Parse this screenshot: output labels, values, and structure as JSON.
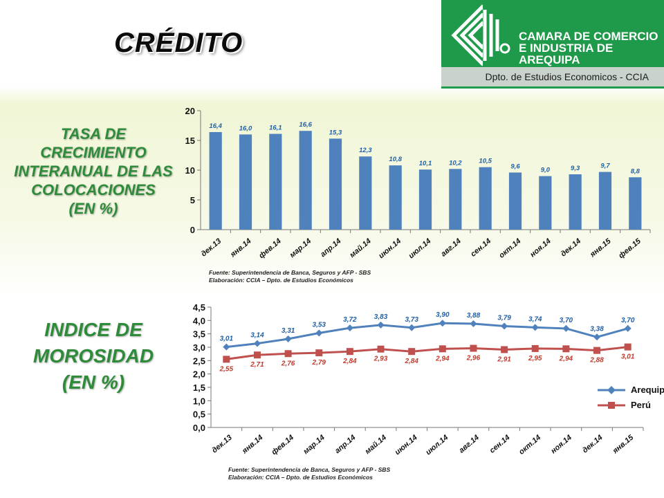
{
  "title": "CRÉDITO",
  "logo": {
    "line1": "CAMARA DE COMERCIO",
    "line2": "E INDUSTRIA DE",
    "line3": "AREQUIPA",
    "subtitle": "Dpto. de Estudios Economicos - CCIA"
  },
  "section1": {
    "lines": [
      "TASA DE",
      "CRECIMIENTO",
      "INTERANUAL DE LAS",
      "COLOCACIONES",
      "(EN %)"
    ]
  },
  "section2": {
    "lines": [
      "INDICE DE",
      "MOROSIDAD",
      "(EN %)"
    ]
  },
  "source1": {
    "line1": "Fuente: Superintendencia de Banca, Seguros y AFP - SBS",
    "line2": "Elaboración: CCIA – Dpto. de Estudios Económicos"
  },
  "source2": {
    "line1": "Fuente: Superintendencia de Banca, Seguros y AFP - SBS",
    "line2": "Elaboración: CCIA – Dpto. de Estudios Económicos"
  },
  "colors": {
    "bar": "#4f81bd",
    "arequipa": "#4f81bd",
    "peru": "#c0504d",
    "green": "#2e8b3a",
    "label_blue": "#1f5fa6",
    "label_red": "#c0392b"
  },
  "chart_data": [
    {
      "type": "bar",
      "categories": [
        "дек.13",
        "янв.14",
        "фев.14",
        "мар.14",
        "апр.14",
        "май.14",
        "июн.14",
        "июл.14",
        "авг.14",
        "сен.14",
        "окт.14",
        "ноя.14",
        "дек.14",
        "янв.15",
        "фев.15"
      ],
      "values": [
        16.4,
        16.0,
        16.1,
        16.6,
        15.3,
        12.3,
        10.8,
        10.1,
        10.2,
        10.5,
        9.6,
        9.0,
        9.3,
        9.7,
        8.8
      ],
      "data_labels": [
        "16,4",
        "16,0",
        "16,1",
        "16,6",
        "15,3",
        "12,3",
        "10,8",
        "10,1",
        "10,2",
        "10,5",
        "9,6",
        "9,0",
        "9,3",
        "9,7",
        "8,8"
      ],
      "ylim": [
        0,
        20
      ],
      "yticks": [
        "0",
        "5",
        "10",
        "15",
        "20"
      ],
      "grid": false
    },
    {
      "type": "line",
      "categories": [
        "дек.13",
        "янв.14",
        "фев.14",
        "мар.14",
        "апр.14",
        "май.14",
        "июн.14",
        "июл.14",
        "авг.14",
        "сен.14",
        "окт.14",
        "ноя.14",
        "дек.14",
        "янв.15"
      ],
      "series": [
        {
          "name": "Arequipa",
          "values": [
            3.01,
            3.14,
            3.31,
            3.53,
            3.72,
            3.83,
            3.73,
            3.9,
            3.88,
            3.79,
            3.74,
            3.7,
            3.38,
            3.7
          ],
          "labels": [
            "3,01",
            "3,14",
            "3,31",
            "3,53",
            "3,72",
            "3,83",
            "3,73",
            "3,90",
            "3,88",
            "3,79",
            "3,74",
            "3,70",
            "3,38",
            "3,70"
          ]
        },
        {
          "name": "Perú",
          "values": [
            2.55,
            2.71,
            2.76,
            2.79,
            2.84,
            2.93,
            2.84,
            2.94,
            2.96,
            2.91,
            2.95,
            2.94,
            2.88,
            3.01
          ],
          "labels": [
            "2,55",
            "2,71",
            "2,76",
            "2,79",
            "2,84",
            "2,93",
            "2,84",
            "2,94",
            "2,96",
            "2,91",
            "2,95",
            "2,94",
            "2,88",
            "3,01"
          ]
        }
      ],
      "ylim": [
        0,
        4.5
      ],
      "yticks": [
        "0,0",
        "0,5",
        "1,0",
        "1,5",
        "2,0",
        "2,5",
        "3,0",
        "3,5",
        "4,0",
        "4,5"
      ],
      "legend": "right",
      "grid": false
    }
  ]
}
